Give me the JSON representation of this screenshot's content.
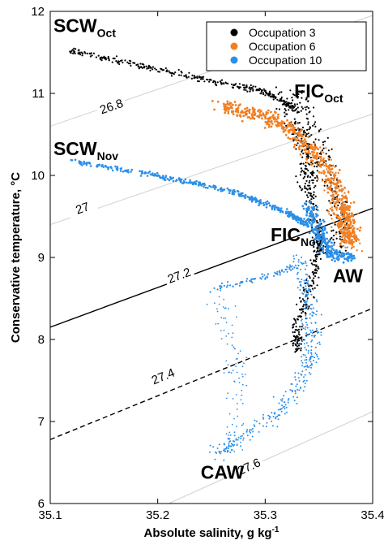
{
  "chart_data": {
    "type": "scatter",
    "xlabel": "Absolute salinity, g kg",
    "xlabel_sup": "-1",
    "ylabel": "Conservative temperature, °C",
    "xlim": [
      35.1,
      35.4
    ],
    "ylim": [
      6,
      12
    ],
    "xticks": [
      "35.1",
      "35.2",
      "35.3",
      "35.4"
    ],
    "yticks": [
      "6",
      "7",
      "8",
      "9",
      "10",
      "11",
      "12"
    ],
    "legend_position": "top-right",
    "series": [
      {
        "name": "Occupation 3",
        "color": "#000000"
      },
      {
        "name": "Occupation 6",
        "color": "#f07f24"
      },
      {
        "name": "Occupation 10",
        "color": "#2b8fe8"
      }
    ],
    "density_contours": [
      {
        "label": "26.8",
        "sigma": 26.8,
        "style": "gray"
      },
      {
        "label": "27",
        "sigma": 27.0,
        "style": "gray"
      },
      {
        "label": "27.2",
        "sigma": 27.2,
        "style": "solid"
      },
      {
        "label": "27.4",
        "sigma": 27.4,
        "style": "dashed"
      },
      {
        "label": "27.6",
        "sigma": 27.6,
        "style": "gray"
      }
    ],
    "water_masses": [
      {
        "main": "SCW",
        "sub": "Oct",
        "s": 35.103,
        "t": 11.75
      },
      {
        "main": "FIC",
        "sub": "Oct",
        "s": 35.327,
        "t": 10.95
      },
      {
        "main": "SCW",
        "sub": "Nov",
        "s": 35.103,
        "t": 10.25
      },
      {
        "main": "FIC",
        "sub": "Nov",
        "s": 35.305,
        "t": 9.2
      },
      {
        "main": "AW",
        "sub": "",
        "s": 35.363,
        "t": 8.7
      },
      {
        "main": "CAW",
        "sub": "",
        "s": 35.24,
        "t": 6.3
      }
    ]
  }
}
